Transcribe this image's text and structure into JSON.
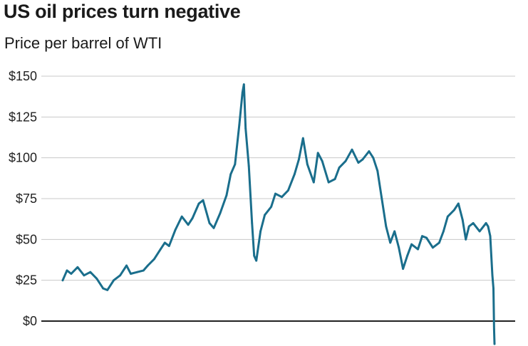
{
  "title": "US oil prices turn negative",
  "subtitle": "Price per barrel of WTI",
  "colors": {
    "line": "#1a6e8c",
    "grid": "#c8c8c8",
    "zero_line": "#222222",
    "text": "#222222"
  },
  "chart_data": {
    "type": "line",
    "title": "US oil prices turn negative",
    "subtitle": "Price per barrel of WTI",
    "xlabel": "",
    "ylabel": "",
    "ylim": [
      -15,
      150
    ],
    "yticks": [
      0,
      25,
      50,
      75,
      100,
      125,
      150
    ],
    "ytick_labels": [
      "$0",
      "$25",
      "$50",
      "$75",
      "$100",
      "$125",
      "$150"
    ],
    "grid": true,
    "legend": "none",
    "x_range": [
      2000,
      2020.3
    ],
    "series": [
      {
        "x": [
          2000.0,
          2000.2,
          2000.4,
          2000.7,
          2001.0,
          2001.3,
          2001.6,
          2001.9,
          2002.1,
          2002.4,
          2002.7,
          2003.0,
          2003.2,
          2003.5,
          2003.8,
          2004.0,
          2004.3,
          2004.6,
          2004.8,
          2005.0,
          2005.3,
          2005.6,
          2005.9,
          2006.1,
          2006.4,
          2006.6,
          2006.9,
          2007.1,
          2007.4,
          2007.7,
          2007.9,
          2008.1,
          2008.3,
          2008.45,
          2008.52,
          2008.6,
          2008.75,
          2008.9,
          2009.0,
          2009.1,
          2009.3,
          2009.5,
          2009.8,
          2010.0,
          2010.3,
          2010.6,
          2010.9,
          2011.1,
          2011.3,
          2011.5,
          2011.8,
          2012.0,
          2012.2,
          2012.5,
          2012.8,
          2013.0,
          2013.3,
          2013.6,
          2013.9,
          2014.1,
          2014.4,
          2014.6,
          2014.8,
          2015.0,
          2015.2,
          2015.4,
          2015.6,
          2015.8,
          2016.0,
          2016.2,
          2016.4,
          2016.7,
          2016.9,
          2017.1,
          2017.4,
          2017.7,
          2017.9,
          2018.1,
          2018.4,
          2018.6,
          2018.8,
          2018.95,
          2019.1,
          2019.3,
          2019.6,
          2019.9,
          2020.0,
          2020.1,
          2020.2,
          2020.25,
          2020.28,
          2020.3
        ],
        "values": [
          25,
          31,
          29,
          33,
          28,
          30,
          26,
          20,
          19,
          25,
          28,
          34,
          29,
          30,
          31,
          34,
          38,
          44,
          48,
          46,
          56,
          64,
          59,
          63,
          72,
          74,
          60,
          57,
          66,
          77,
          90,
          96,
          120,
          140,
          145,
          118,
          95,
          60,
          40,
          37,
          55,
          65,
          70,
          78,
          76,
          80,
          90,
          99,
          112,
          96,
          85,
          103,
          98,
          85,
          87,
          94,
          98,
          105,
          97,
          99,
          104,
          100,
          92,
          75,
          58,
          48,
          55,
          45,
          32,
          40,
          47,
          44,
          52,
          51,
          45,
          48,
          55,
          64,
          68,
          72,
          62,
          50,
          58,
          60,
          55,
          60,
          58,
          52,
          28,
          20,
          -5,
          -14
        ]
      }
    ]
  }
}
